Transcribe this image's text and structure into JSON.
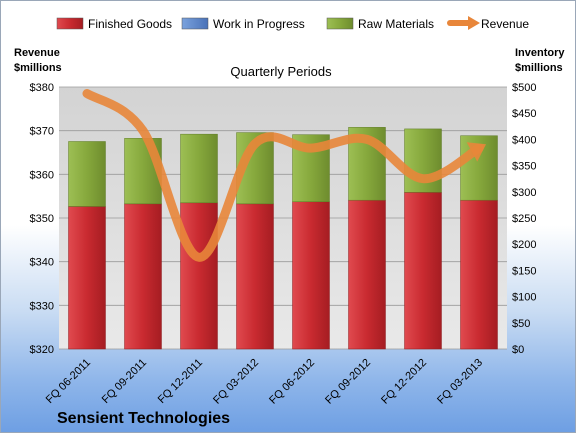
{
  "chart_data": {
    "type": "bar",
    "title": "Quarterly Periods",
    "company": "Sensient Technologies",
    "ylabel_left": [
      "Revenue",
      "$millions"
    ],
    "ylabel_right": [
      "Inventory",
      "$millions"
    ],
    "categories": [
      "FQ 06-2011",
      "FQ 09-2011",
      "FQ 12-2011",
      "FQ 03-2012",
      "FQ 06-2012",
      "FQ 09-2012",
      "FQ 12-2012",
      "FQ 03-2013"
    ],
    "left_axis": {
      "min": 320,
      "max": 380,
      "ticks": [
        "$320",
        "$330",
        "$340",
        "$350",
        "$360",
        "$370",
        "$380"
      ],
      "tick_values": [
        320,
        330,
        340,
        350,
        360,
        370,
        380
      ]
    },
    "right_axis": {
      "min": 0,
      "max": 500,
      "ticks": [
        "$0",
        "$50",
        "$100",
        "$150",
        "$200",
        "$250",
        "$300",
        "$350",
        "$400",
        "$450",
        "$500"
      ],
      "tick_values": [
        0,
        50,
        100,
        150,
        200,
        250,
        300,
        350,
        400,
        450,
        500
      ]
    },
    "legend": [
      "Finished Goods",
      "Work in Progress",
      "Raw Materials",
      "Revenue"
    ],
    "series": [
      {
        "name": "Finished Goods",
        "axis": "right",
        "color": "#c0282d",
        "values": [
          272,
          277,
          279,
          277,
          281,
          284,
          299,
          284
        ]
      },
      {
        "name": "Work in Progress",
        "axis": "right",
        "color": "#5b85c9",
        "values": [
          0,
          0,
          0,
          0,
          0,
          0,
          0,
          0
        ]
      },
      {
        "name": "Raw Materials",
        "axis": "right",
        "color": "#8aac3f",
        "values": [
          124,
          125,
          131,
          136,
          128,
          139,
          121,
          123
        ]
      },
      {
        "name": "Revenue",
        "axis": "left",
        "color": "#e8863a",
        "values": [
          378.5,
          370,
          341,
          367,
          366,
          368,
          359,
          366
        ]
      }
    ],
    "grid": true,
    "legend_position": "top"
  }
}
